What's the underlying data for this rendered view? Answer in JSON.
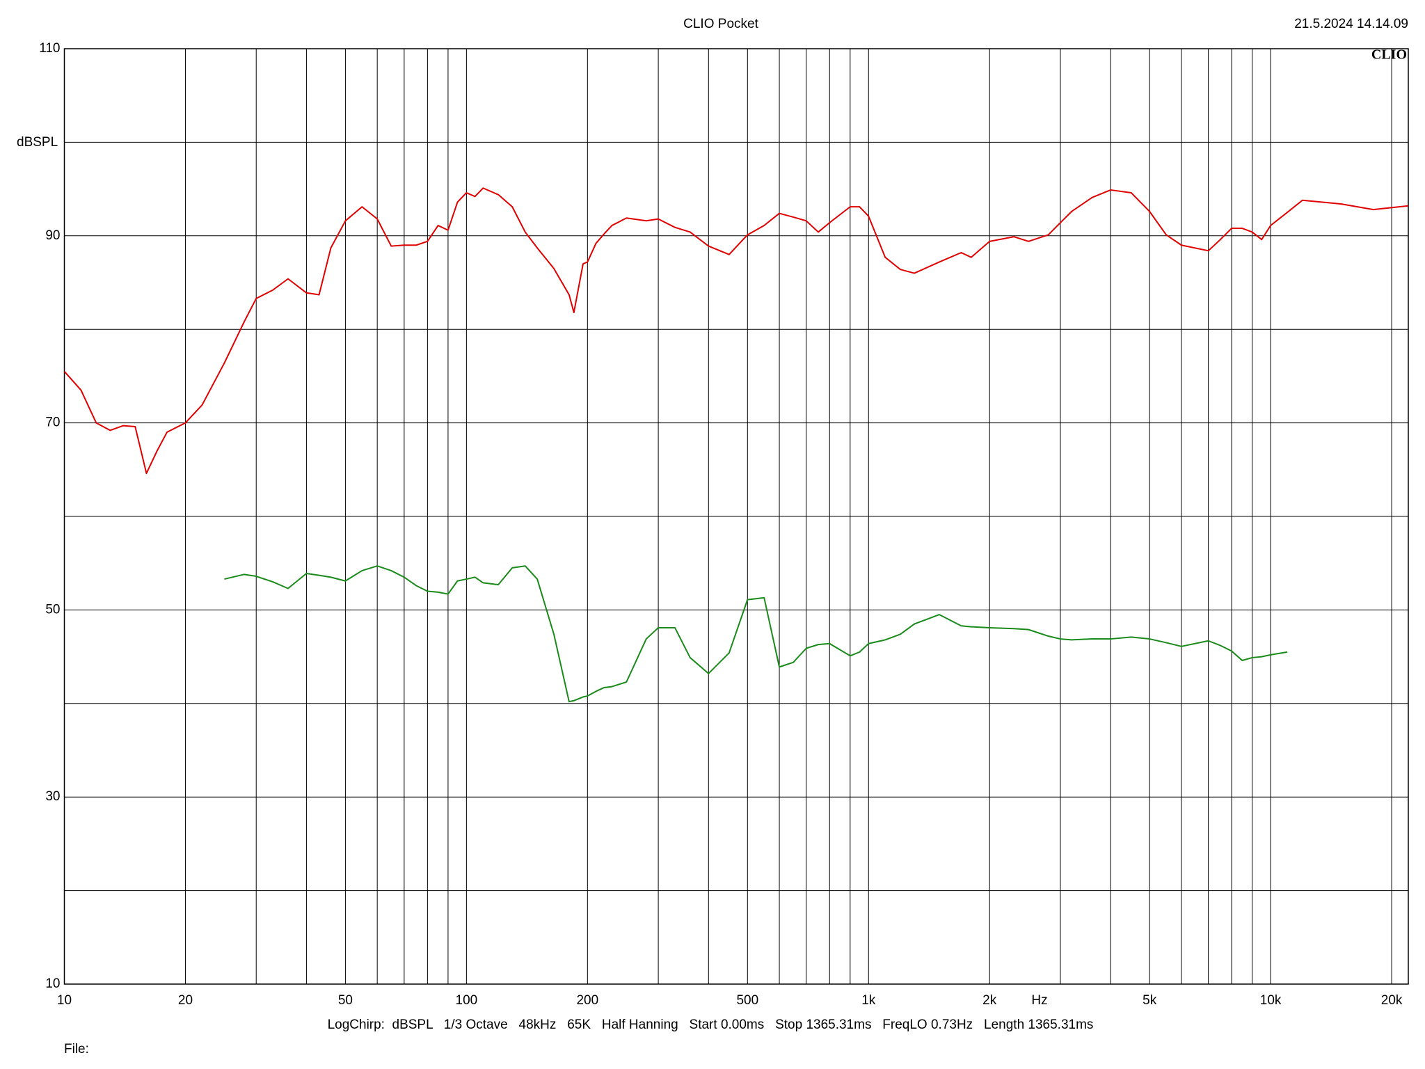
{
  "chart_data": {
    "type": "line",
    "title": "CLIO Pocket",
    "timestamp": "21.5.2024 14.14.09",
    "logo": "CLIO",
    "ylabel": "dBSPL",
    "xlabel": "Hz",
    "footer": "LogChirp:  dBSPL   1/3 Octave   48kHz   65K   Half Hanning   Start 0.00ms   Stop 1365.31ms   FreqLO 0.73Hz   Length 1365.31ms",
    "file_label": "File:",
    "xscale": "log",
    "xlim": [
      10,
      22000
    ],
    "ylim": [
      10,
      110
    ],
    "xticks": [
      10,
      20,
      50,
      100,
      200,
      500,
      {
        "value": 1000,
        "label": "1k"
      },
      {
        "value": 2000,
        "label": "2k"
      },
      {
        "value": 5000,
        "label": "5k"
      },
      {
        "value": 10000,
        "label": "10k"
      },
      {
        "value": 20000,
        "label": "20k"
      }
    ],
    "xgrid": [
      30,
      40,
      60,
      70,
      80,
      90,
      300,
      400,
      600,
      700,
      800,
      900,
      3000,
      4000,
      6000,
      7000,
      8000,
      9000
    ],
    "yticks": [
      10,
      30,
      50,
      70,
      90,
      110
    ],
    "ygrid": [
      20,
      40,
      60,
      80,
      100
    ],
    "grid": true,
    "x": [
      10,
      11,
      12,
      13,
      14,
      15,
      16,
      17,
      18,
      20,
      22,
      25,
      28,
      30,
      33,
      36,
      40,
      43,
      46,
      50,
      55,
      60,
      65,
      70,
      75,
      80,
      85,
      90,
      95,
      100,
      105,
      110,
      120,
      130,
      140,
      150,
      165,
      180,
      185,
      195,
      200,
      210,
      220,
      230,
      250,
      280,
      300,
      330,
      360,
      400,
      450,
      500,
      550,
      600,
      650,
      700,
      750,
      800,
      900,
      950,
      1000,
      1100,
      1200,
      1300,
      1500,
      1700,
      1800,
      2000,
      2300,
      2500,
      2800,
      3000,
      3200,
      3600,
      4000,
      4500,
      5000,
      5500,
      6000,
      7000,
      7500,
      8000,
      8500,
      9000,
      9500,
      10000,
      11000,
      12000,
      15000,
      18000,
      22000
    ],
    "series": [
      {
        "color": "#e00000",
        "values": [
          75.5,
          73.5,
          70.0,
          69.2,
          69.7,
          69.6,
          64.6,
          67.0,
          69.0,
          70.0,
          71.9,
          76.4,
          80.8,
          83.3,
          84.2,
          85.4,
          83.9,
          83.7,
          88.7,
          91.6,
          93.1,
          91.8,
          88.9,
          89.0,
          89.0,
          89.4,
          91.1,
          90.6,
          93.6,
          94.6,
          94.2,
          95.1,
          94.4,
          93.1,
          90.4,
          88.7,
          86.5,
          83.7,
          81.8,
          87.0,
          87.2,
          89.2,
          90.2,
          91.1,
          91.9,
          91.6,
          91.8,
          90.9,
          90.4,
          88.9,
          88.0,
          90.1,
          91.1,
          92.4,
          92.0,
          91.6,
          90.4,
          91.4,
          93.1,
          93.1,
          92.1,
          87.7,
          86.4,
          86.0,
          87.2,
          88.2,
          87.7,
          89.4,
          89.9,
          89.4,
          90.1,
          91.4,
          92.6,
          94.1,
          94.9,
          94.6,
          92.6,
          90.1,
          89.0,
          88.4,
          89.6,
          90.8,
          90.8,
          90.4,
          89.6,
          91.1,
          92.5,
          93.8,
          93.4,
          92.8,
          93.2
        ]
      },
      {
        "color": "#1a8a1a",
        "values": [
          null,
          null,
          null,
          null,
          null,
          null,
          null,
          null,
          null,
          null,
          null,
          53.3,
          53.8,
          53.6,
          53.0,
          52.3,
          53.9,
          53.7,
          53.5,
          53.1,
          54.2,
          54.7,
          54.2,
          53.5,
          52.6,
          52.0,
          51.9,
          51.7,
          53.1,
          53.3,
          53.5,
          52.9,
          52.7,
          54.5,
          54.7,
          53.3,
          47.4,
          40.2,
          40.3,
          40.7,
          40.8,
          41.3,
          41.7,
          41.8,
          42.3,
          46.9,
          48.1,
          48.1,
          44.9,
          43.2,
          45.4,
          51.1,
          51.3,
          43.9,
          44.4,
          45.9,
          46.3,
          46.4,
          45.1,
          45.5,
          46.4,
          46.8,
          47.4,
          48.5,
          49.5,
          48.3,
          48.2,
          48.1,
          48.0,
          47.9,
          47.2,
          46.9,
          46.8,
          46.9,
          46.9,
          47.1,
          46.9,
          46.5,
          46.1,
          46.7,
          46.2,
          45.6,
          44.6,
          44.9,
          45.0,
          45.2,
          45.5,
          null,
          null,
          null,
          null
        ]
      }
    ]
  }
}
